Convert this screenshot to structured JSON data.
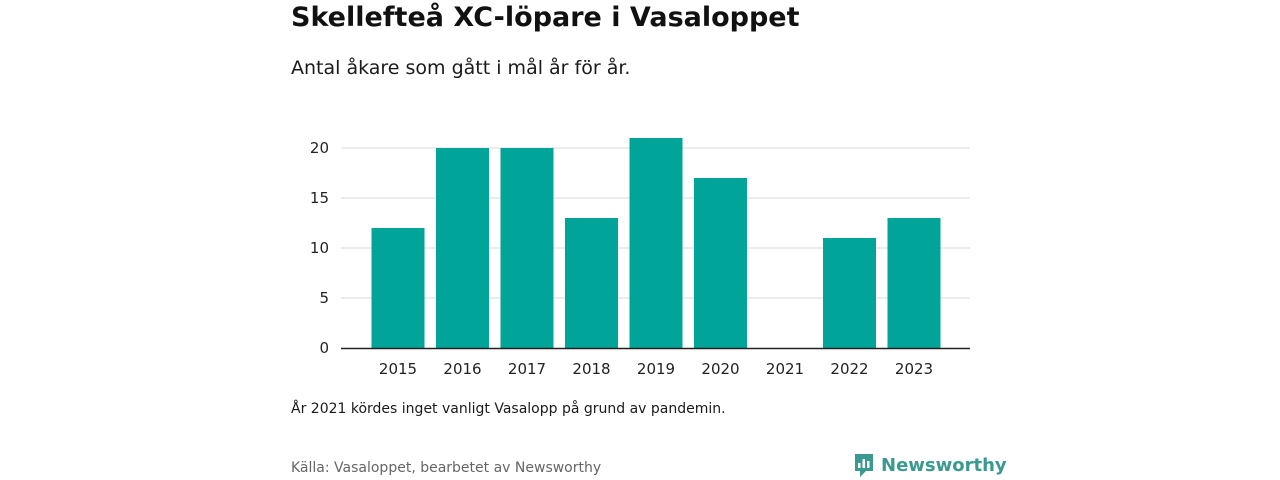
{
  "title": "Skellefteå XC-löpare i Vasaloppet",
  "subtitle": "Antal åkare som gått i mål år för år.",
  "note": "År 2021 kördes inget vanligt Vasalopp på grund av pandemin.",
  "source": "Källa: Vasaloppet, bearbetet av Newsworthy",
  "brand": {
    "name": "Newsworthy",
    "icon": "newsworthy-logo-icon",
    "color": "#3a9a8f"
  },
  "chart_data": {
    "type": "bar",
    "categories": [
      "2015",
      "2016",
      "2017",
      "2018",
      "2019",
      "2020",
      "2021",
      "2022",
      "2023"
    ],
    "values": [
      12,
      20,
      20,
      13,
      21,
      17,
      0,
      11,
      13
    ],
    "yticks": [
      0,
      5,
      10,
      15,
      20
    ],
    "ylim": [
      0,
      21
    ],
    "grid": true,
    "bar_color": "#00a499",
    "xlabel": "",
    "ylabel": ""
  }
}
